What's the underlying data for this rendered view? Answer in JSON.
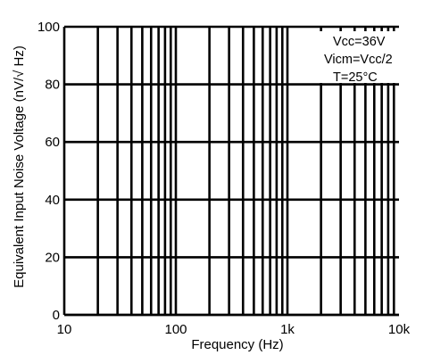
{
  "chart_data": {
    "type": "line",
    "title": "",
    "xlabel": "Frequency (Hz)",
    "ylabel": "Equivalent Input Noise Voltage   (nV/√ Hz)",
    "x_scale": "log",
    "xlim": [
      10,
      10000
    ],
    "ylim": [
      0,
      100
    ],
    "x_ticks": [
      {
        "value": 10,
        "label": "10"
      },
      {
        "value": 100,
        "label": "100"
      },
      {
        "value": 1000,
        "label": "1k"
      },
      {
        "value": 10000,
        "label": "10k"
      }
    ],
    "y_ticks": [
      {
        "value": 0,
        "label": "0"
      },
      {
        "value": 20,
        "label": "20"
      },
      {
        "value": 40,
        "label": "40"
      },
      {
        "value": 60,
        "label": "60"
      },
      {
        "value": 80,
        "label": "80"
      },
      {
        "value": 100,
        "label": "100"
      }
    ],
    "grid": true,
    "annotations": [
      "Vcc=36V",
      "Vicm=Vcc/2",
      "T=25°C"
    ],
    "series": []
  },
  "colors": {
    "grid": "#000000",
    "text": "#000000",
    "background": "#ffffff"
  }
}
